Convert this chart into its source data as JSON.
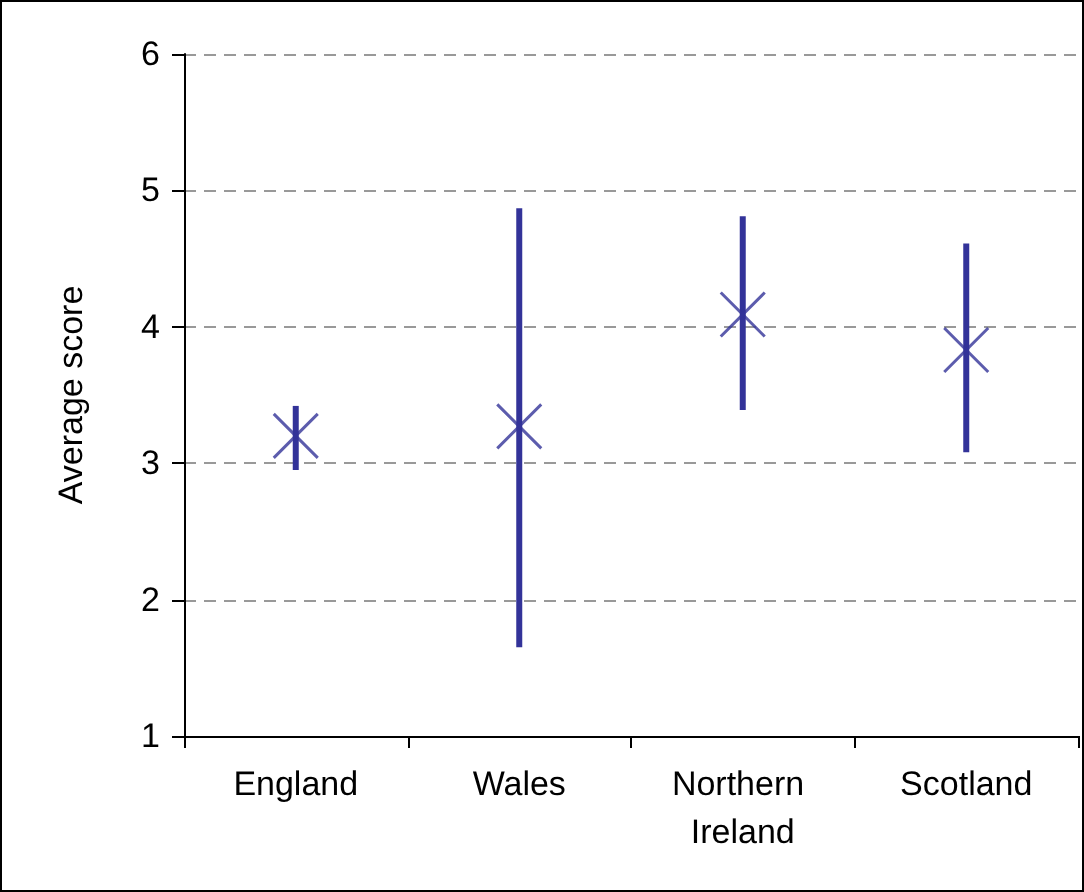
{
  "chart_data": {
    "type": "scatter",
    "ylabel": "Average score",
    "categories": [
      "England",
      "Wales",
      "Northern Ireland",
      "Scotland"
    ],
    "series": [
      {
        "color": "#333399",
        "values": [
          3.2,
          3.27,
          4.09,
          3.83
        ],
        "errors": [
          [
            2.95,
            3.42
          ],
          [
            1.65,
            4.87
          ],
          [
            3.39,
            4.81
          ],
          [
            3.08,
            4.61
          ]
        ]
      }
    ],
    "ylim": [
      1,
      6
    ],
    "yticks": [
      1,
      2,
      3,
      4,
      5,
      6
    ],
    "grid": "y",
    "marker": "cross"
  }
}
